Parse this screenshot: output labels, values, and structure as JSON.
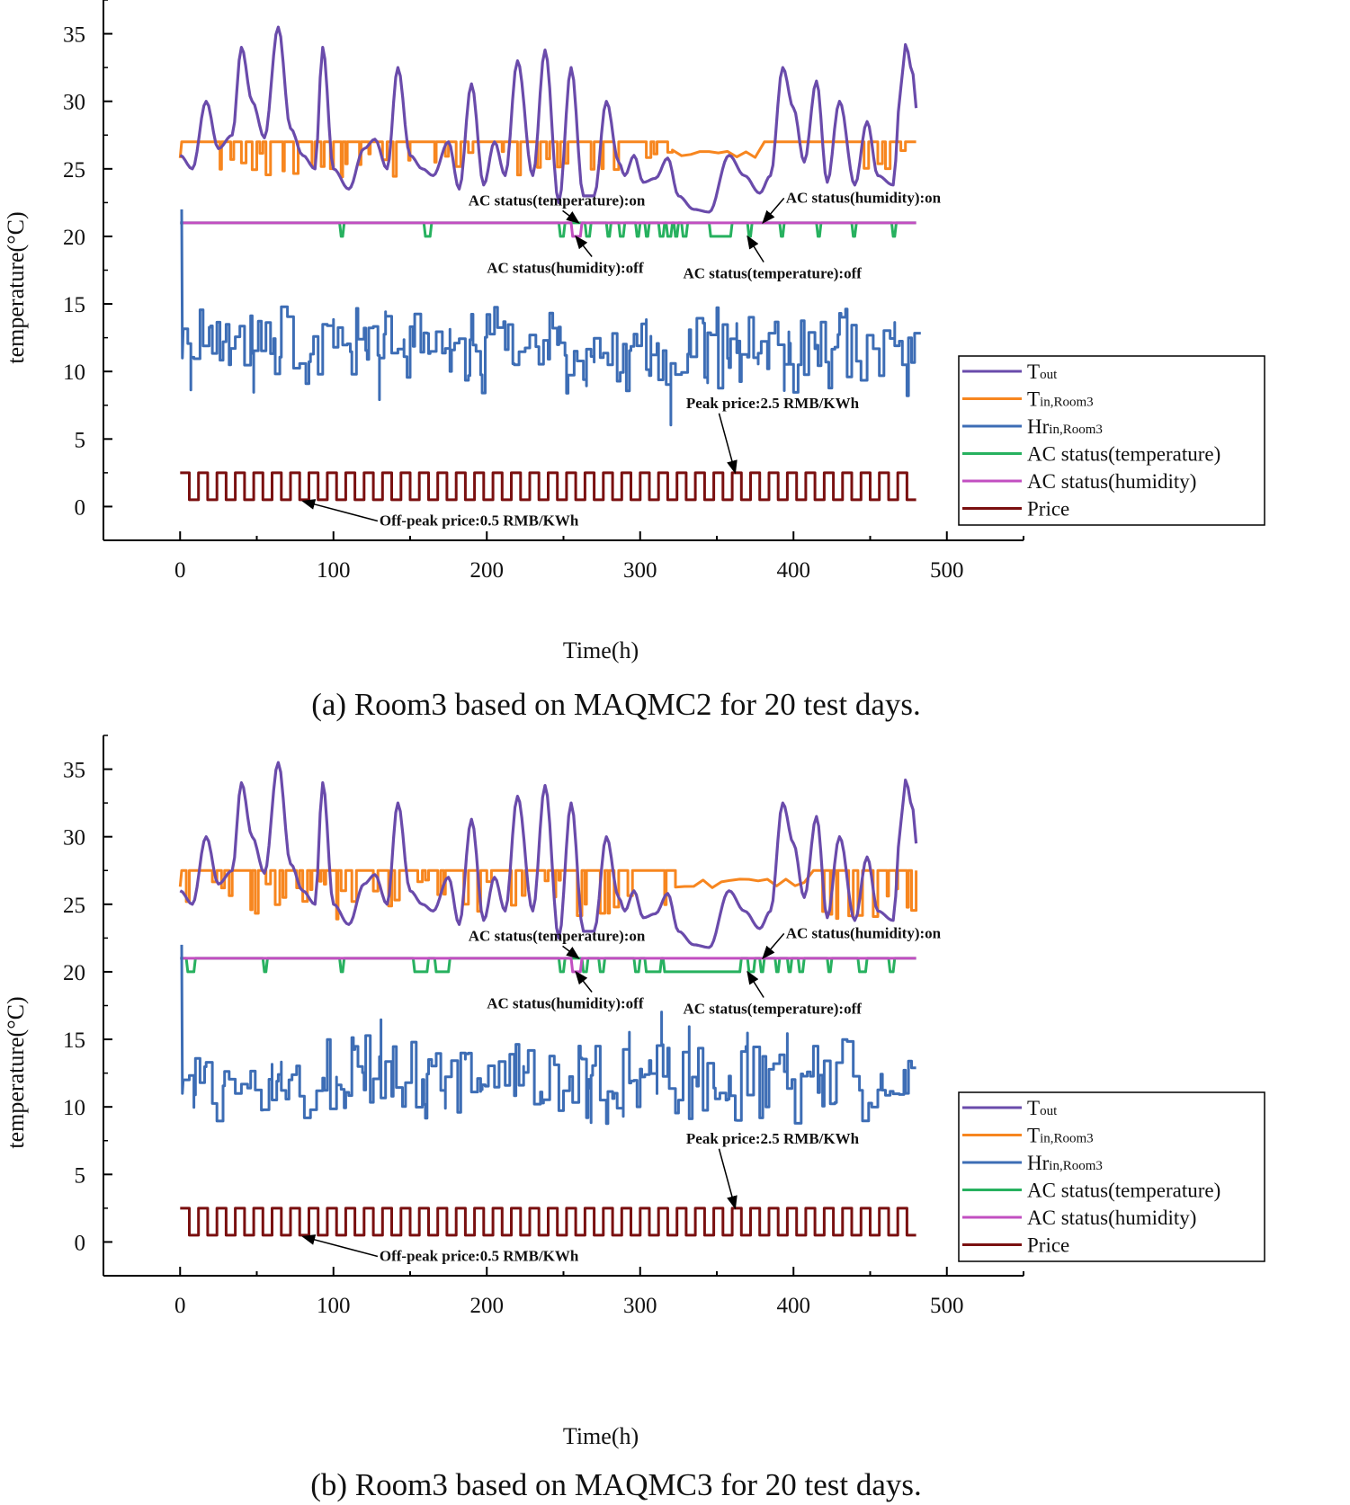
{
  "colors": {
    "tout": "#6a4bab",
    "tin": "#f7861f",
    "hr": "#3d6db5",
    "ac_temp": "#27b15f",
    "ac_hum": "#c24fc1",
    "price": "#7a1010",
    "axis": "#000000"
  },
  "chart_data": [
    {
      "id": "a",
      "type": "line",
      "caption": "(a)  Room3 based on MAQMC2 for 20 test days.",
      "xlabel": "Time(h)",
      "ylabel": "temperature(°C)",
      "xlim": [
        -50,
        550
      ],
      "ylim": [
        -2.5,
        37.5
      ],
      "xticks": [
        0,
        100,
        200,
        300,
        400,
        500
      ],
      "yticks": [
        0,
        5,
        10,
        15,
        20,
        25,
        30,
        35
      ],
      "legend": {
        "position": "right-middle",
        "entries": [
          {
            "key": "tout",
            "main": "T",
            "sub": "out"
          },
          {
            "key": "tin",
            "main": "T",
            "sub": "in,Room3"
          },
          {
            "key": "hr",
            "main": "Hr",
            "sub": "in,Room3"
          },
          {
            "key": "ac_temp",
            "main": "AC status(temperature)",
            "sub": ""
          },
          {
            "key": "ac_hum",
            "main": "AC status(humidity)",
            "sub": ""
          },
          {
            "key": "price",
            "main": "Price",
            "sub": ""
          }
        ]
      },
      "annotations": [
        {
          "text": "AC status(temperature):on",
          "pos": [
            188,
            22.3
          ],
          "target": [
            260,
            21.0
          ]
        },
        {
          "text": "AC status(humidity):on",
          "pos": [
            395,
            22.5
          ],
          "target": [
            380,
            21.0
          ]
        },
        {
          "text": "AC status(humidity):off",
          "pos": [
            200,
            17.3
          ],
          "target": [
            258,
            20.0
          ]
        },
        {
          "text": "AC status(temperature):off",
          "pos": [
            328,
            16.9
          ],
          "target": [
            370,
            20.0
          ]
        },
        {
          "text": "Peak price:2.5 RMB/KWh",
          "pos": [
            330,
            7.3
          ],
          "target": [
            362,
            2.5
          ]
        },
        {
          "text": "Off-peak price:0.5 RMB/KWh",
          "pos": [
            130,
            -1.4
          ],
          "target": [
            80,
            0.4
          ]
        }
      ],
      "series": {
        "tout": {
          "name": "Tout",
          "x": [
            0,
            8,
            17,
            25,
            34,
            40,
            47,
            55,
            64,
            72,
            80,
            88,
            93,
            100,
            110,
            120,
            127,
            135,
            142,
            150,
            158,
            165,
            175,
            182,
            190,
            198,
            205,
            212,
            220,
            230,
            238,
            247,
            255,
            263,
            270,
            278,
            286,
            290,
            296,
            302,
            310,
            318,
            325,
            335,
            345,
            358,
            368,
            378,
            385,
            393,
            400,
            407,
            415,
            422,
            430,
            440,
            448,
            455,
            465,
            470,
            473,
            478,
            480
          ],
          "y": [
            26,
            25,
            30,
            26.5,
            27.5,
            34,
            30,
            27.3,
            35.5,
            28,
            26,
            25,
            34,
            25,
            23.5,
            26.5,
            27.2,
            25,
            32.5,
            26,
            25,
            24.5,
            27,
            23.5,
            31.3,
            23.8,
            27,
            24.5,
            33,
            24.5,
            33.8,
            22.5,
            32.5,
            23,
            23,
            30,
            25.5,
            24.5,
            26,
            24,
            24.3,
            25.8,
            23,
            22,
            21.8,
            26,
            24.5,
            23.2,
            24.5,
            32.5,
            29.5,
            25.5,
            31.5,
            24,
            30,
            23.8,
            28.5,
            24.5,
            23.8,
            31,
            34.2,
            32,
            29.5
          ]
        },
        "tin": {
          "name": "Tin,Room3",
          "base": 27.0,
          "low": 25.0,
          "seed": 11,
          "dip_ranges": [
            [
              25,
              200
            ],
            [
              210,
              290
            ],
            [
              300,
              320
            ],
            [
              440,
              480
            ]
          ],
          "smooth_ranges": [
            [
              320,
              360
            ],
            [
              360,
              380
            ]
          ]
        },
        "hr": {
          "name": "Hrin,Room3",
          "start_spike": 22,
          "levels": [
            11.5,
            12.5,
            13.5,
            14,
            10.5,
            9,
            12,
            11
          ],
          "seed": 7
        },
        "ac_temp": {
          "name": "AC status(temperature)",
          "on": 21,
          "off": 20,
          "off_intervals": [
            [
              104,
              107
            ],
            [
              159,
              164
            ],
            [
              247,
              251
            ],
            [
              264,
              268
            ],
            [
              278,
              281
            ],
            [
              286,
              290
            ],
            [
              297,
              300
            ],
            [
              303,
              306
            ],
            [
              312,
              316
            ],
            [
              317,
              321
            ],
            [
              322,
              325
            ],
            [
              327,
              331
            ],
            [
              345,
              360
            ],
            [
              370,
              373
            ],
            [
              391,
              394
            ],
            [
              415,
              418
            ],
            [
              438,
              441
            ],
            [
              464,
              467
            ]
          ]
        },
        "ac_hum": {
          "name": "AC status(humidity)",
          "on": 21,
          "off": 20,
          "off_intervals": [
            [
              255,
              262
            ]
          ]
        },
        "price": {
          "name": "Price",
          "high": 2.5,
          "low": 0.5,
          "period": 12,
          "from": 0,
          "to": 480
        }
      }
    },
    {
      "id": "b",
      "type": "line",
      "caption": "(b)  Room3 based on MAQMC3 for 20 test days.",
      "xlabel": "Time(h)",
      "ylabel": "temperature(°C)",
      "xlim": [
        -50,
        550
      ],
      "ylim": [
        -2.5,
        37.5
      ],
      "xticks": [
        0,
        100,
        200,
        300,
        400,
        500
      ],
      "yticks": [
        0,
        5,
        10,
        15,
        20,
        25,
        30,
        35
      ],
      "legend": {
        "position": "right-middle",
        "entries": [
          {
            "key": "tout",
            "main": "T",
            "sub": "out"
          },
          {
            "key": "tin",
            "main": "T",
            "sub": "in,Room3"
          },
          {
            "key": "hr",
            "main": "Hr",
            "sub": "in,Room3"
          },
          {
            "key": "ac_temp",
            "main": "AC status(temperature)",
            "sub": ""
          },
          {
            "key": "ac_hum",
            "main": "AC status(humidity)",
            "sub": ""
          },
          {
            "key": "price",
            "main": "Price",
            "sub": ""
          }
        ]
      },
      "annotations": [
        {
          "text": "AC status(temperature):on",
          "pos": [
            188,
            22.3
          ],
          "target": [
            260,
            21.0
          ]
        },
        {
          "text": "AC status(humidity):on",
          "pos": [
            395,
            22.5
          ],
          "target": [
            380,
            21.0
          ]
        },
        {
          "text": "AC status(humidity):off",
          "pos": [
            200,
            17.3
          ],
          "target": [
            258,
            20.0
          ]
        },
        {
          "text": "AC status(temperature):off",
          "pos": [
            328,
            16.9
          ],
          "target": [
            370,
            20.0
          ]
        },
        {
          "text": "Peak price:2.5 RMB/KWh",
          "pos": [
            330,
            7.3
          ],
          "target": [
            362,
            2.5
          ]
        },
        {
          "text": "Off-peak price:0.5 RMB/KWh",
          "pos": [
            130,
            -1.4
          ],
          "target": [
            80,
            0.4
          ]
        }
      ],
      "series": {
        "tout": {
          "name": "Tout",
          "x": [
            0,
            8,
            17,
            25,
            34,
            40,
            47,
            55,
            64,
            72,
            80,
            88,
            93,
            100,
            110,
            120,
            127,
            135,
            142,
            150,
            158,
            165,
            175,
            182,
            190,
            198,
            205,
            212,
            220,
            230,
            238,
            247,
            255,
            263,
            270,
            278,
            286,
            290,
            296,
            302,
            310,
            318,
            325,
            335,
            345,
            358,
            368,
            378,
            385,
            393,
            400,
            407,
            415,
            422,
            430,
            440,
            448,
            455,
            465,
            470,
            473,
            478,
            480
          ],
          "y": [
            26,
            25,
            30,
            26.5,
            27.5,
            34,
            30,
            27.3,
            35.5,
            28,
            26,
            25,
            34,
            25,
            23.5,
            26.5,
            27.2,
            25,
            32.5,
            26,
            25,
            24.5,
            27,
            23.5,
            31.3,
            23.8,
            27,
            24.5,
            33,
            24.5,
            33.8,
            22.5,
            32.5,
            23,
            23,
            30,
            25.5,
            24.5,
            26,
            24,
            24.3,
            25.8,
            23,
            22,
            21.8,
            26,
            24.5,
            23.2,
            24.5,
            32.5,
            29.5,
            25.5,
            31.5,
            24,
            30,
            23.8,
            28.5,
            24.5,
            23.8,
            31,
            34.2,
            32,
            29.5
          ]
        },
        "tin": {
          "name": "Tin,Room3",
          "base": 27.5,
          "low": 24.5,
          "seed": 23,
          "dip_ranges": [
            [
              0,
              300
            ],
            [
              305,
              320
            ],
            [
              410,
              480
            ]
          ],
          "smooth_ranges": [
            [
              320,
              410
            ]
          ]
        },
        "hr": {
          "name": "Hrin,Room3",
          "start_spike": 22,
          "levels": [
            11.8,
            12.8,
            13.8,
            10.5,
            9.5,
            12,
            11,
            14.5
          ],
          "seed": 19
        },
        "ac_temp": {
          "name": "AC status(temperature)",
          "on": 21,
          "off": 20,
          "off_intervals": [
            [
              4,
              10
            ],
            [
              54,
              57
            ],
            [
              104,
              107
            ],
            [
              152,
              162
            ],
            [
              166,
              176
            ],
            [
              247,
              251
            ],
            [
              262,
              266
            ],
            [
              273,
              277
            ],
            [
              296,
              300
            ],
            [
              303,
              314
            ],
            [
              315,
              366
            ],
            [
              370,
              375
            ],
            [
              378,
              381
            ],
            [
              388,
              391
            ],
            [
              396,
              399
            ],
            [
              403,
              407
            ],
            [
              422,
              425
            ],
            [
              442,
              448
            ],
            [
              462,
              466
            ]
          ]
        },
        "ac_hum": {
          "name": "AC status(humidity)",
          "on": 21,
          "off": 20,
          "off_intervals": [
            [
              255,
              262
            ]
          ]
        },
        "price": {
          "name": "Price",
          "high": 2.5,
          "low": 0.5,
          "period": 12,
          "from": 0,
          "to": 480
        }
      }
    }
  ]
}
